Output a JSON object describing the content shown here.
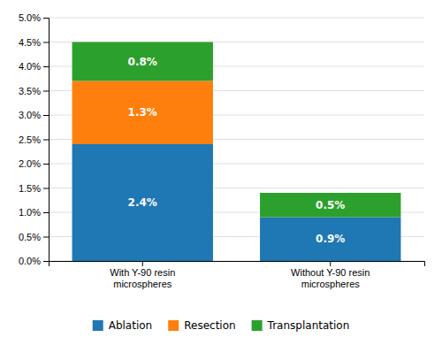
{
  "chart_data": {
    "type": "bar",
    "stacked": true,
    "categories": [
      "With Y-90 resin\nmicrospheres",
      "Without Y-90 resin\nmicrospheres"
    ],
    "series": [
      {
        "name": "Ablation",
        "values": [
          2.4,
          0.9
        ],
        "value_labels": [
          "2.4%",
          "0.9%"
        ]
      },
      {
        "name": "Resection",
        "values": [
          1.3,
          0.0
        ],
        "value_labels": [
          "1.3%",
          null
        ]
      },
      {
        "name": "Transplantation",
        "values": [
          0.8,
          0.5
        ],
        "value_labels": [
          "0.8%",
          "0.5%"
        ]
      }
    ],
    "ylim": [
      0,
      5.0
    ],
    "yticks": [
      {
        "value": 0.0,
        "label": "0.0%"
      },
      {
        "value": 0.5,
        "label": "0.5%"
      },
      {
        "value": 1.0,
        "label": "1.0%"
      },
      {
        "value": 1.5,
        "label": "1.5%"
      },
      {
        "value": 2.0,
        "label": "2.0%"
      },
      {
        "value": 2.5,
        "label": "2.5%"
      },
      {
        "value": 3.0,
        "label": "3.0%"
      },
      {
        "value": 3.5,
        "label": "3.5%"
      },
      {
        "value": 4.0,
        "label": "4.0%"
      },
      {
        "value": 4.5,
        "label": "4.5%"
      },
      {
        "value": 5.0,
        "label": "5.0%"
      }
    ],
    "grid": true,
    "data_labels": true,
    "legend": "bottom"
  }
}
